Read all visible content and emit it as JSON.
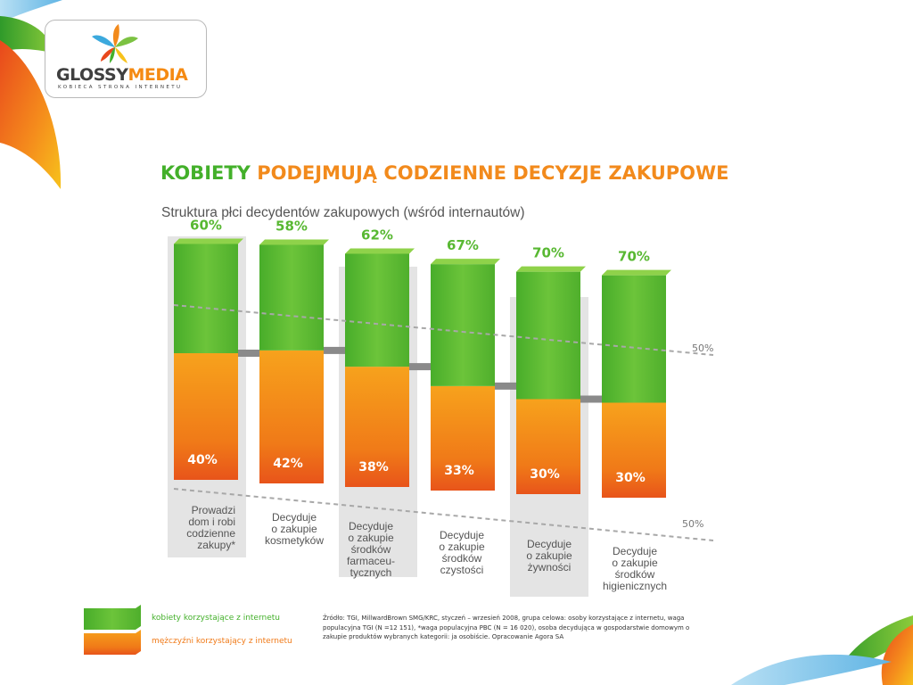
{
  "logo": {
    "glossy": "GLOSSY",
    "media": "MEDIA",
    "tagline": "KOBIECA STRONA INTERNETU"
  },
  "title": {
    "part1": "KOBIETY",
    "part2": "PODEJMUJĄ CODZIENNE DECYZJE ZAKUPOWE"
  },
  "subtitle": "Struktura płci decydentów zakupowych (wśród internautów)",
  "chart_data": {
    "type": "bar",
    "stacked": true,
    "unit": "%",
    "ylim": [
      0,
      100
    ],
    "reference_line_label": "50%",
    "reference_value": 50,
    "categories": [
      "Prowadzi dom i robi codzienne zakupy*",
      "Decyduje o zakupie kosmetyków",
      "Decyduje o zakupie środków farmaceu-tycznych",
      "Decyduje o zakupie środków czystości",
      "Decyduje o zakupie żywności",
      "Decyduje o zakupie środków higienicznych"
    ],
    "category_lines": [
      [
        "Prowadzi",
        "dom i robi",
        "codzienne",
        "zakupy*"
      ],
      [
        "Decyduje",
        "o zakupie",
        "kosmetyków"
      ],
      [
        "Decyduje",
        "o zakupie",
        "środków",
        "farmaceu-",
        "tycznych"
      ],
      [
        "Decyduje",
        "o zakupie",
        "środków",
        "czystości"
      ],
      [
        "Decyduje",
        "o zakupie",
        "żywności"
      ],
      [
        "Decyduje",
        "o zakupie",
        "środków",
        "higienicznych"
      ]
    ],
    "series": [
      {
        "name": "kobiety korzystające z internetu",
        "color": "#58b832",
        "values": [
          60,
          58,
          62,
          67,
          70,
          70
        ],
        "labels": [
          "60%",
          "58%",
          "62%",
          "67%",
          "70%",
          "70%"
        ]
      },
      {
        "name": "mężczyźni korzystający z internetu",
        "color": "#f07a18",
        "values": [
          40,
          42,
          38,
          33,
          30,
          30
        ],
        "labels": [
          "40%",
          "42%",
          "38%",
          "33%",
          "30%",
          "30%"
        ]
      }
    ],
    "highlighted_columns": [
      0,
      2,
      4
    ],
    "legend_position": "bottom-left"
  },
  "source": "Źródło: TGI, MillwardBrown SMG/KRC, styczeń – wrzesień 2008, grupa celowa: osoby korzystające z internetu, waga populacyjna TGI (N =12 151), *waga populacyjna PBC (N = 16 020), osoba decydująca w gospodarstwie domowym o zakupie produktów wybranych kategorii: ja osobiście. Opracowanie Agora SA"
}
